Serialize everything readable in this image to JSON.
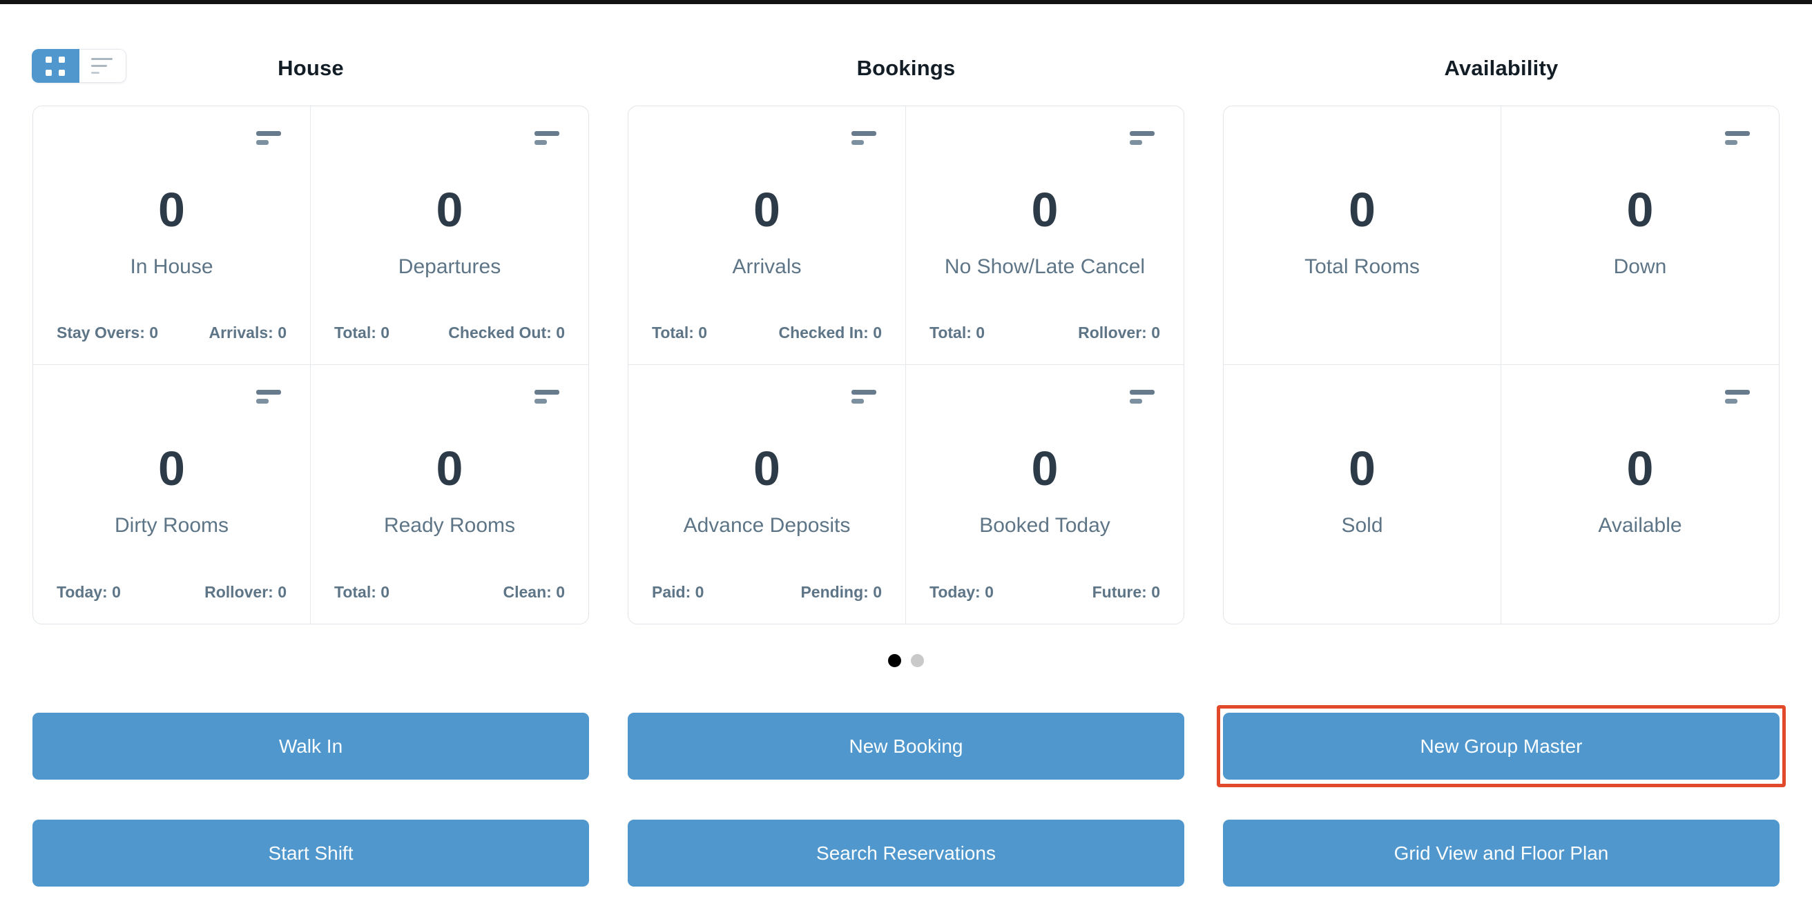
{
  "colors": {
    "accent_blue": "#4f97cd",
    "highlight_red": "#e2492a",
    "active_dot": "#000000",
    "inactive_dot": "#c9c9c9",
    "icon_slate": "#677b8d",
    "number_text": "#2d3b48",
    "label_text": "#5d7586"
  },
  "view_toggle": {
    "grid_icon": "grid-view",
    "list_icon": "list-view",
    "selected": "grid"
  },
  "sections": [
    {
      "title": "House",
      "cards": [
        {
          "value": "0",
          "label": "In House",
          "stats_left": "Stay Overs: 0",
          "stats_right": "Arrivals: 0"
        },
        {
          "value": "0",
          "label": "Departures",
          "stats_left": "Total: 0",
          "stats_right": "Checked Out: 0"
        },
        {
          "value": "0",
          "label": "Dirty Rooms",
          "stats_left": "Today: 0",
          "stats_right": "Rollover: 0"
        },
        {
          "value": "0",
          "label": "Ready Rooms",
          "stats_left": "Total: 0",
          "stats_right": "Clean: 0"
        }
      ]
    },
    {
      "title": "Bookings",
      "cards": [
        {
          "value": "0",
          "label": "Arrivals",
          "stats_left": "Total: 0",
          "stats_right": "Checked In: 0"
        },
        {
          "value": "0",
          "label": "No Show/Late Cancel",
          "stats_left": "Total: 0",
          "stats_right": "Rollover: 0"
        },
        {
          "value": "0",
          "label": "Advance Deposits",
          "stats_left": "Paid: 0",
          "stats_right": "Pending: 0"
        },
        {
          "value": "0",
          "label": "Booked Today",
          "stats_left": "Today: 0",
          "stats_right": "Future: 0"
        }
      ]
    },
    {
      "title": "Availability",
      "cards": [
        {
          "value": "0",
          "label": "Total Rooms"
        },
        {
          "value": "0",
          "label": "Down"
        },
        {
          "value": "0",
          "label": "Sold"
        },
        {
          "value": "0",
          "label": "Available"
        }
      ]
    }
  ],
  "pagination": {
    "page_count": 2,
    "active_page": 1
  },
  "actions": {
    "row1": [
      "Walk In",
      "New Booking",
      "New Group Master"
    ],
    "row2": [
      "Start Shift",
      "Search Reservations",
      "Grid View and Floor Plan"
    ],
    "highlighted": "New Group Master"
  }
}
